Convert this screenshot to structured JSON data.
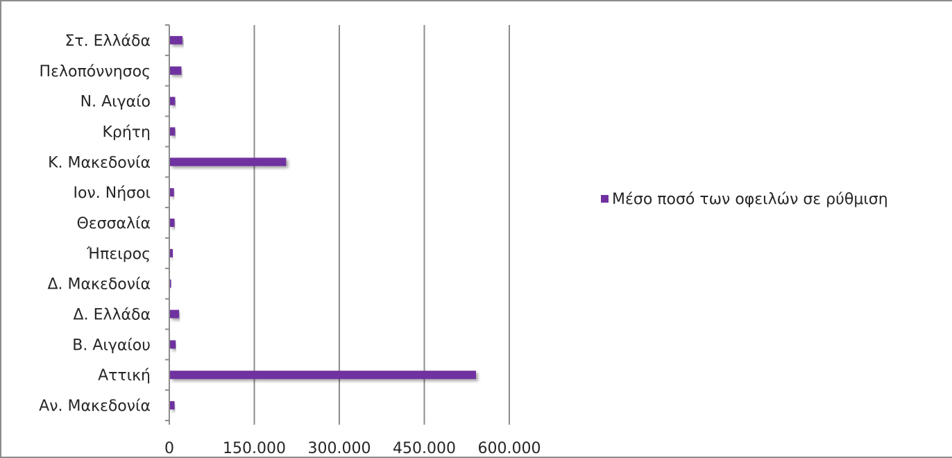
{
  "chart_data": {
    "type": "bar",
    "orientation": "horizontal",
    "categories": [
      "Αν. Μακεδονία",
      "Αττική",
      "Β. Αιγαίου",
      "Δ. Ελλάδα",
      "Δ. Μακεδονία",
      "Ήπειρος",
      "Θεσσαλία",
      "Ιον. Νήσοι",
      "Κ. Μακεδονία",
      "Κρήτη",
      "Ν. Αιγαίο",
      "Πελοπόννησος",
      "Στ. Ελλάδα"
    ],
    "series": [
      {
        "name": "Μέσο ποσό των οφειλών σε ρύθμιση",
        "values": [
          8000,
          540000,
          10000,
          16000,
          2000,
          5000,
          8000,
          7000,
          205000,
          9000,
          9000,
          20000,
          22000
        ]
      }
    ],
    "xlim": [
      0,
      600000
    ],
    "xticks": [
      "0",
      "150.000",
      "300.000",
      "450.000",
      "600.000"
    ],
    "xtick_values": [
      0,
      150000,
      300000,
      450000,
      600000
    ],
    "grid": "vertical",
    "legend": "right",
    "colors": {
      "bar": "#7030a0",
      "grid": "#8c8c8c",
      "text": "#262626"
    }
  }
}
